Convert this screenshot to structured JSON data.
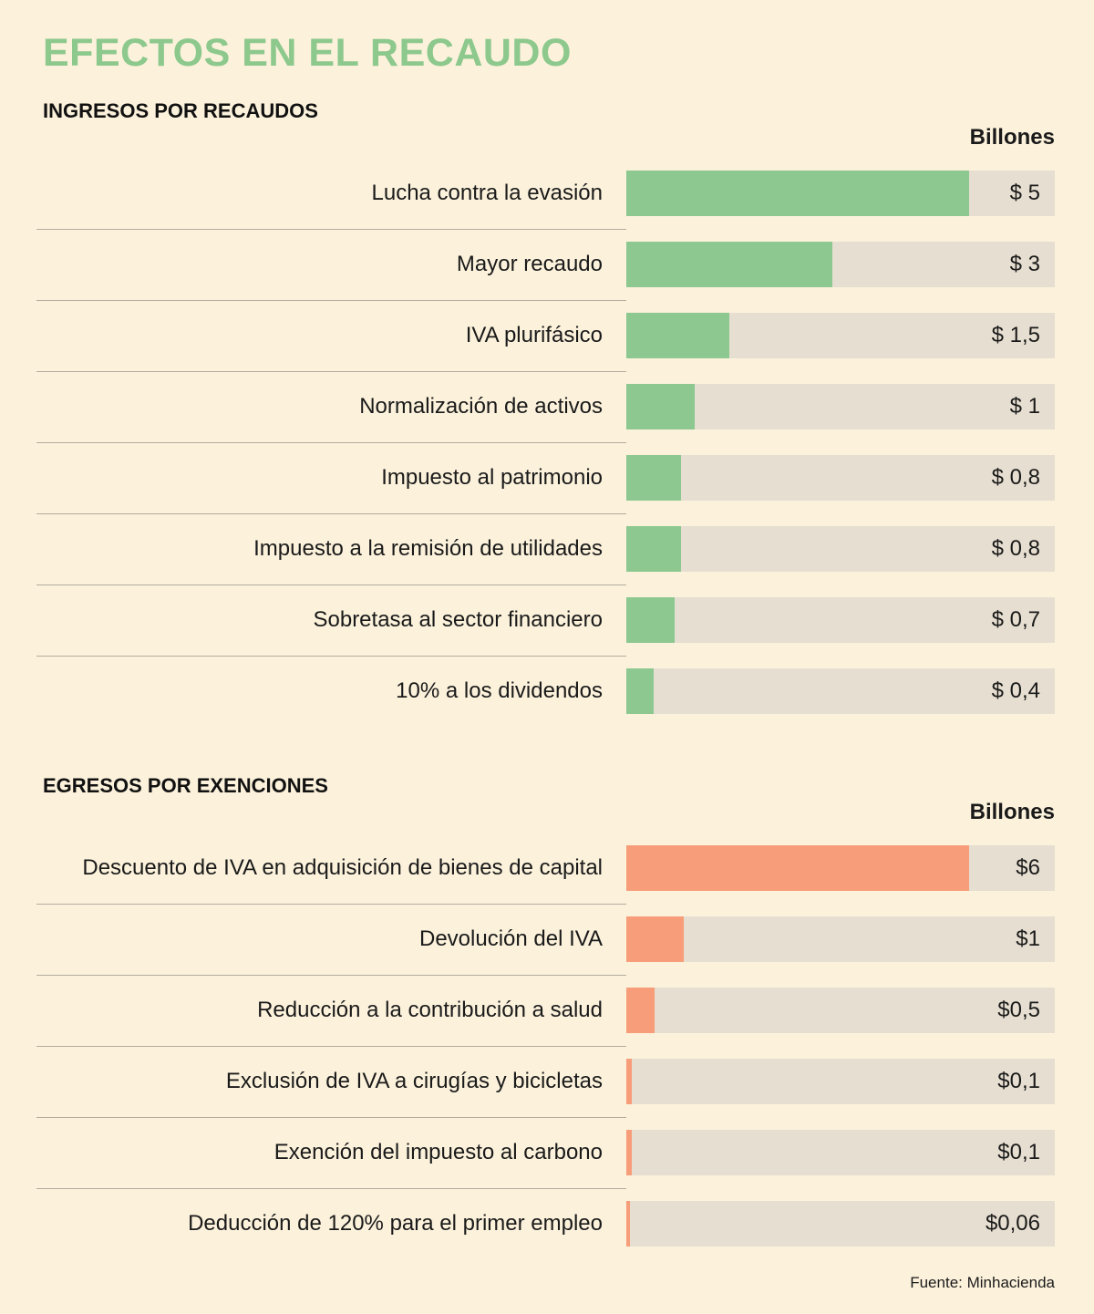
{
  "page": {
    "title": "EFECTOS EN EL RECAUDO",
    "source": "Fuente: Minhacienda"
  },
  "colors": {
    "background": "#fcf2dc",
    "title_green": "#8dc88d",
    "bar_green": "#8cc88f",
    "bar_orange": "#f89d79",
    "track": "#e6ded0",
    "divider": "#b3ab9d",
    "text": "#1a1a1a"
  },
  "chart_data": [
    {
      "type": "bar",
      "title": "INGRESOS POR RECAUDOS",
      "unit_label": "Billones",
      "bar_color": "#8cc88f",
      "track_full_value": 6.25,
      "legend_position": "none",
      "grid": false,
      "categories": [
        "Lucha contra la evasión",
        "Mayor recaudo",
        "IVA plurifásico",
        "Normalización de activos",
        "Impuesto al patrimonio",
        "Impuesto a la remisión de utilidades",
        "Sobretasa al sector financiero",
        "10% a los dividendos"
      ],
      "values": [
        5,
        3,
        1.5,
        1,
        0.8,
        0.8,
        0.7,
        0.4
      ],
      "value_labels": [
        "$ 5",
        "$ 3",
        "$ 1,5",
        "$ 1",
        "$ 0,8",
        "$ 0,8",
        "$ 0,7",
        "$ 0,4"
      ]
    },
    {
      "type": "bar",
      "title": "EGRESOS POR EXENCIONES",
      "unit_label": "Billones",
      "bar_color": "#f89d79",
      "track_full_value": 7.5,
      "legend_position": "none",
      "grid": false,
      "categories": [
        "Descuento de IVA en adquisición de bienes de capital",
        "Devolución del IVA",
        "Reducción a la contribución a salud",
        "Exclusión de IVA a cirugías y bicicletas",
        "Exención del impuesto al carbono",
        "Deducción de 120% para el primer empleo"
      ],
      "values": [
        6,
        1,
        0.5,
        0.1,
        0.1,
        0.06
      ],
      "value_labels": [
        "$6",
        "$1",
        "$0,5",
        "$0,1",
        "$0,1",
        "$0,06"
      ]
    }
  ]
}
